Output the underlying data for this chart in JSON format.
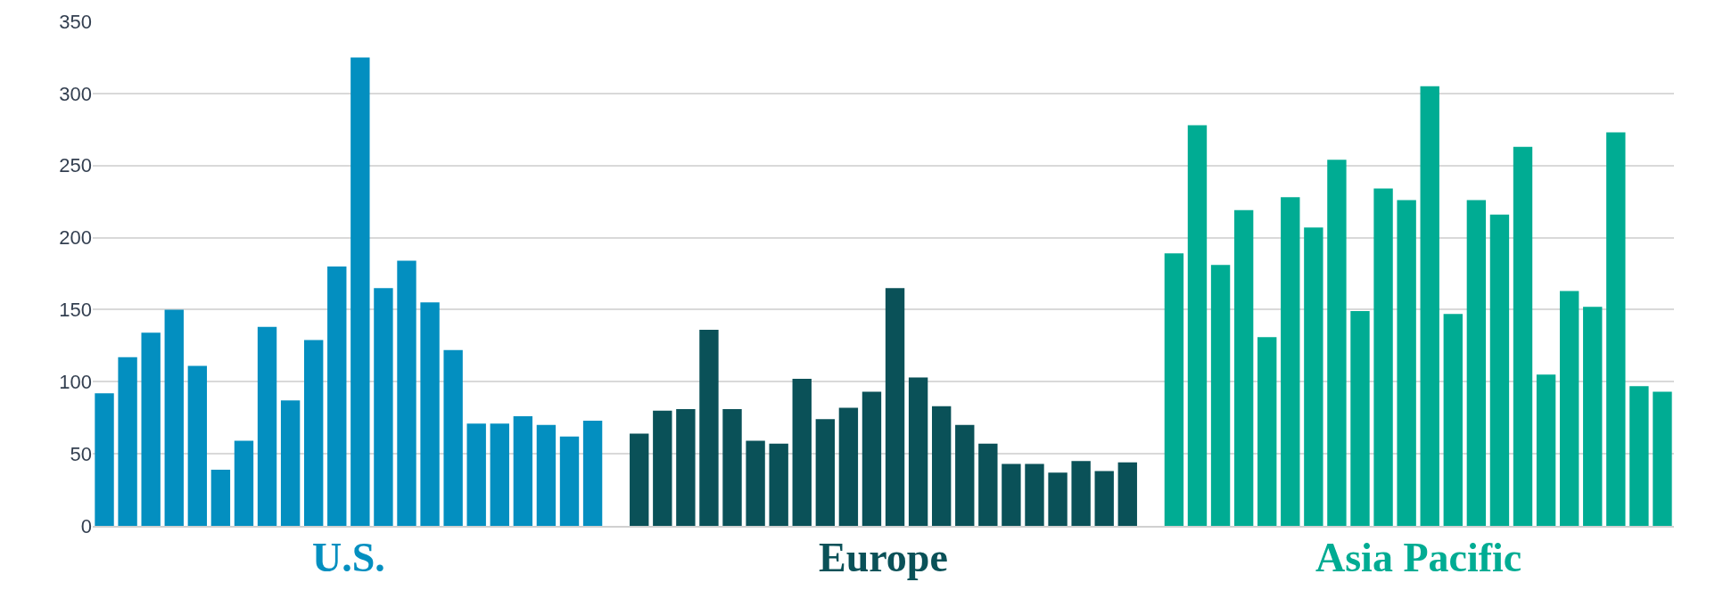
{
  "chart_data": {
    "type": "bar",
    "categories": [
      null,
      null,
      null,
      null,
      null,
      null,
      null,
      null,
      null,
      null,
      null,
      null,
      null,
      null,
      null,
      null,
      null,
      null,
      null,
      null,
      null,
      null,
      null,
      null,
      null,
      null,
      null,
      null,
      null,
      null,
      null,
      null,
      null,
      null,
      null,
      null,
      null,
      null,
      null,
      null,
      null,
      null,
      null,
      null,
      null,
      null,
      null,
      null,
      null,
      null,
      null,
      null,
      null,
      null,
      null,
      null,
      null,
      null,
      null,
      null,
      null,
      null,
      null,
      null,
      null,
      null,
      null,
      null
    ],
    "series": [
      {
        "name": "U.S.",
        "color": "#038fc0",
        "values": [
          92,
          117,
          134,
          150,
          111,
          39,
          59,
          138,
          87,
          129,
          180,
          325,
          165,
          184,
          155,
          122,
          71,
          71,
          76,
          70,
          62,
          73,
          null,
          null,
          null,
          null,
          null,
          null,
          null,
          null,
          null,
          null,
          null,
          null,
          null,
          null,
          null,
          null,
          null,
          null,
          null,
          null,
          null,
          null,
          null,
          null,
          null,
          null,
          null,
          null,
          null,
          null,
          null,
          null,
          null,
          null,
          null,
          null,
          null,
          null,
          null,
          null,
          null,
          null,
          null,
          null,
          null,
          null
        ]
      },
      {
        "name": "Europe",
        "color": "#0a5158",
        "values": [
          null,
          null,
          null,
          null,
          null,
          null,
          null,
          null,
          null,
          null,
          null,
          null,
          null,
          null,
          null,
          null,
          null,
          null,
          null,
          null,
          null,
          null,
          null,
          64,
          80,
          81,
          136,
          81,
          59,
          57,
          102,
          74,
          82,
          93,
          165,
          103,
          83,
          70,
          57,
          43,
          43,
          37,
          45,
          38,
          44,
          null,
          null,
          null,
          null,
          null,
          null,
          null,
          null,
          null,
          null,
          null,
          null,
          null,
          null,
          null,
          null,
          null,
          null,
          null,
          null,
          null,
          null,
          null
        ]
      },
      {
        "name": "Asia Pacific",
        "color": "#00ac93",
        "values": [
          null,
          null,
          null,
          null,
          null,
          null,
          null,
          null,
          null,
          null,
          null,
          null,
          null,
          null,
          null,
          null,
          null,
          null,
          null,
          null,
          null,
          null,
          null,
          null,
          null,
          null,
          null,
          null,
          null,
          null,
          null,
          null,
          null,
          null,
          null,
          null,
          null,
          null,
          null,
          null,
          null,
          null,
          null,
          null,
          null,
          null,
          189,
          278,
          181,
          219,
          131,
          228,
          207,
          254,
          149,
          234,
          226,
          305,
          147,
          226,
          216,
          263,
          105,
          163,
          152,
          273,
          97,
          93
        ]
      }
    ],
    "ylim": [
      0,
      350
    ],
    "yticks": [
      0,
      50,
      100,
      150,
      200,
      250,
      300,
      350
    ],
    "grid": "y",
    "legend": false
  }
}
